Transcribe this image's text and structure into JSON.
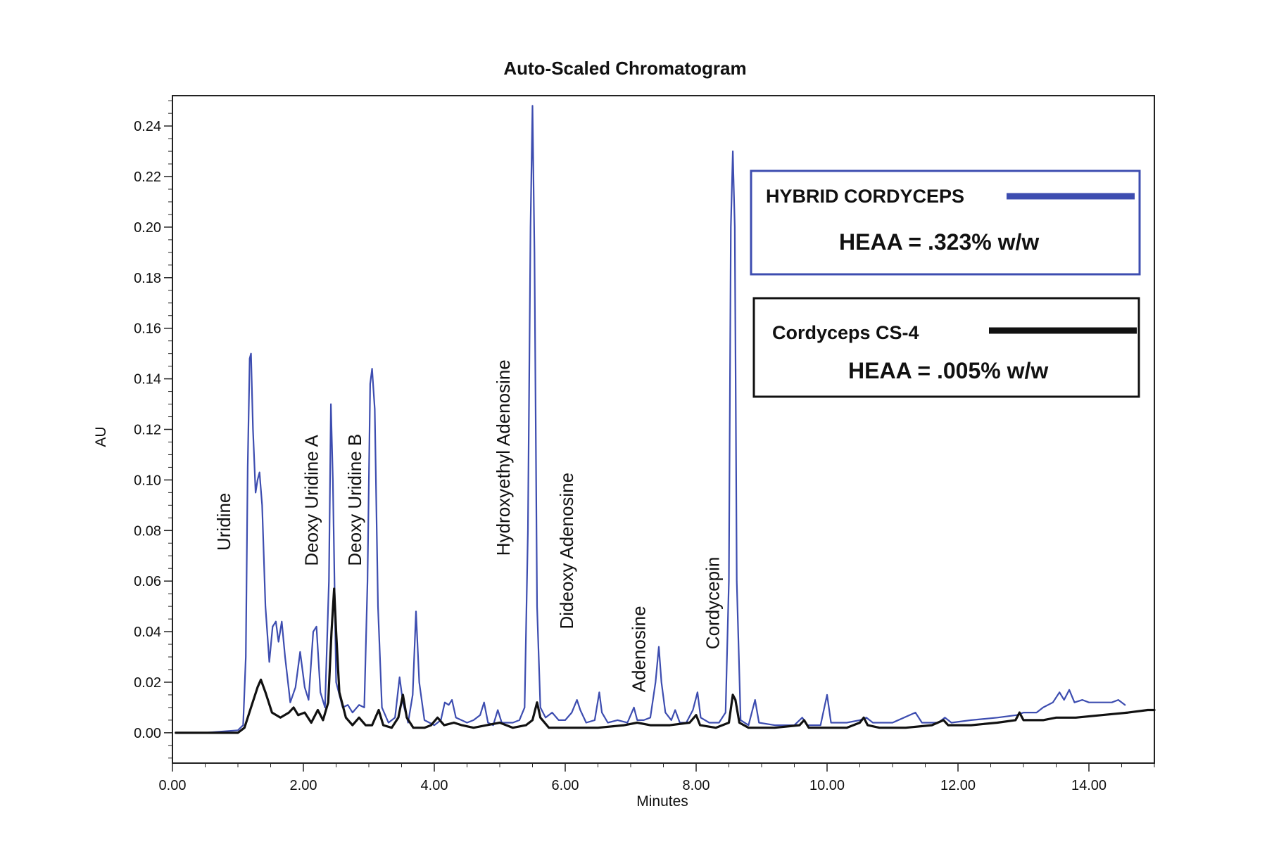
{
  "chart_data": {
    "type": "line",
    "title": "Auto-Scaled Chromatogram",
    "xlabel": "Minutes",
    "ylabel": "AU",
    "xlim": [
      0,
      15.0
    ],
    "ylim": [
      -0.012,
      0.252
    ],
    "x_ticks": [
      "0.00",
      "2.00",
      "4.00",
      "6.00",
      "8.00",
      "10.00",
      "12.00",
      "14.00"
    ],
    "y_ticks": [
      "0.00",
      "0.02",
      "0.04",
      "0.06",
      "0.08",
      "0.10",
      "0.12",
      "0.14",
      "0.16",
      "0.18",
      "0.20",
      "0.22",
      "0.24"
    ],
    "grid": false,
    "legend_position": "top-right",
    "peak_labels": [
      {
        "text": "Uridine",
        "x": 0.88,
        "y": 0.072
      },
      {
        "text": "Deoxy Uridine A",
        "x": 2.22,
        "y": 0.066
      },
      {
        "text": "Deoxy Uridine B",
        "x": 2.88,
        "y": 0.066
      },
      {
        "text": "Hydroxyethyl Adenosine",
        "x": 5.15,
        "y": 0.07
      },
      {
        "text": "Dideoxy Adenosine",
        "x": 6.12,
        "y": 0.041
      },
      {
        "text": "Adenosine",
        "x": 7.22,
        "y": 0.016
      },
      {
        "text": "Cordycepin",
        "x": 8.35,
        "y": 0.033
      }
    ],
    "series": [
      {
        "name": "HYBRID CORDYCEPS",
        "note": "HEAA = .323% w/w",
        "color": "#3d4db0",
        "points": [
          [
            0.05,
            0.0
          ],
          [
            0.5,
            0.0
          ],
          [
            1.0,
            0.001
          ],
          [
            1.08,
            0.003
          ],
          [
            1.12,
            0.03
          ],
          [
            1.15,
            0.105
          ],
          [
            1.18,
            0.148
          ],
          [
            1.2,
            0.15
          ],
          [
            1.23,
            0.12
          ],
          [
            1.27,
            0.095
          ],
          [
            1.3,
            0.1
          ],
          [
            1.33,
            0.103
          ],
          [
            1.37,
            0.09
          ],
          [
            1.42,
            0.05
          ],
          [
            1.48,
            0.028
          ],
          [
            1.53,
            0.042
          ],
          [
            1.58,
            0.044
          ],
          [
            1.62,
            0.036
          ],
          [
            1.67,
            0.044
          ],
          [
            1.72,
            0.03
          ],
          [
            1.8,
            0.012
          ],
          [
            1.88,
            0.018
          ],
          [
            1.95,
            0.032
          ],
          [
            2.02,
            0.018
          ],
          [
            2.08,
            0.013
          ],
          [
            2.15,
            0.04
          ],
          [
            2.2,
            0.042
          ],
          [
            2.26,
            0.016
          ],
          [
            2.33,
            0.01
          ],
          [
            2.39,
            0.06
          ],
          [
            2.42,
            0.13
          ],
          [
            2.45,
            0.1
          ],
          [
            2.5,
            0.02
          ],
          [
            2.6,
            0.01
          ],
          [
            2.68,
            0.011
          ],
          [
            2.75,
            0.008
          ],
          [
            2.85,
            0.011
          ],
          [
            2.93,
            0.01
          ],
          [
            2.98,
            0.06
          ],
          [
            3.02,
            0.138
          ],
          [
            3.05,
            0.144
          ],
          [
            3.09,
            0.128
          ],
          [
            3.14,
            0.05
          ],
          [
            3.2,
            0.01
          ],
          [
            3.3,
            0.004
          ],
          [
            3.4,
            0.006
          ],
          [
            3.47,
            0.022
          ],
          [
            3.52,
            0.012
          ],
          [
            3.6,
            0.004
          ],
          [
            3.67,
            0.015
          ],
          [
            3.72,
            0.048
          ],
          [
            3.77,
            0.02
          ],
          [
            3.85,
            0.005
          ],
          [
            4.0,
            0.003
          ],
          [
            4.1,
            0.005
          ],
          [
            4.16,
            0.012
          ],
          [
            4.22,
            0.011
          ],
          [
            4.27,
            0.013
          ],
          [
            4.33,
            0.006
          ],
          [
            4.5,
            0.004
          ],
          [
            4.6,
            0.005
          ],
          [
            4.7,
            0.007
          ],
          [
            4.76,
            0.012
          ],
          [
            4.82,
            0.004
          ],
          [
            4.9,
            0.003
          ],
          [
            4.97,
            0.009
          ],
          [
            5.03,
            0.004
          ],
          [
            5.2,
            0.004
          ],
          [
            5.3,
            0.005
          ],
          [
            5.38,
            0.01
          ],
          [
            5.43,
            0.08
          ],
          [
            5.47,
            0.2
          ],
          [
            5.5,
            0.248
          ],
          [
            5.53,
            0.19
          ],
          [
            5.57,
            0.05
          ],
          [
            5.62,
            0.01
          ],
          [
            5.7,
            0.006
          ],
          [
            5.8,
            0.008
          ],
          [
            5.9,
            0.005
          ],
          [
            6.0,
            0.005
          ],
          [
            6.1,
            0.008
          ],
          [
            6.18,
            0.013
          ],
          [
            6.23,
            0.009
          ],
          [
            6.32,
            0.004
          ],
          [
            6.45,
            0.005
          ],
          [
            6.52,
            0.016
          ],
          [
            6.56,
            0.008
          ],
          [
            6.65,
            0.004
          ],
          [
            6.8,
            0.005
          ],
          [
            6.95,
            0.004
          ],
          [
            7.05,
            0.01
          ],
          [
            7.1,
            0.005
          ],
          [
            7.2,
            0.005
          ],
          [
            7.3,
            0.006
          ],
          [
            7.38,
            0.02
          ],
          [
            7.43,
            0.034
          ],
          [
            7.47,
            0.02
          ],
          [
            7.53,
            0.008
          ],
          [
            7.62,
            0.005
          ],
          [
            7.68,
            0.009
          ],
          [
            7.75,
            0.004
          ],
          [
            7.85,
            0.004
          ],
          [
            7.95,
            0.009
          ],
          [
            8.02,
            0.016
          ],
          [
            8.07,
            0.006
          ],
          [
            8.2,
            0.004
          ],
          [
            8.35,
            0.004
          ],
          [
            8.45,
            0.008
          ],
          [
            8.5,
            0.06
          ],
          [
            8.53,
            0.2
          ],
          [
            8.56,
            0.23
          ],
          [
            8.59,
            0.2
          ],
          [
            8.62,
            0.06
          ],
          [
            8.68,
            0.005
          ],
          [
            8.8,
            0.003
          ],
          [
            8.9,
            0.013
          ],
          [
            8.96,
            0.004
          ],
          [
            9.2,
            0.003
          ],
          [
            9.5,
            0.003
          ],
          [
            9.62,
            0.006
          ],
          [
            9.7,
            0.003
          ],
          [
            9.9,
            0.003
          ],
          [
            10.0,
            0.015
          ],
          [
            10.06,
            0.004
          ],
          [
            10.3,
            0.004
          ],
          [
            10.5,
            0.005
          ],
          [
            10.6,
            0.006
          ],
          [
            10.7,
            0.004
          ],
          [
            11.0,
            0.004
          ],
          [
            11.35,
            0.008
          ],
          [
            11.45,
            0.004
          ],
          [
            11.7,
            0.004
          ],
          [
            11.8,
            0.006
          ],
          [
            11.9,
            0.004
          ],
          [
            12.2,
            0.005
          ],
          [
            12.6,
            0.006
          ],
          [
            12.9,
            0.007
          ],
          [
            13.0,
            0.008
          ],
          [
            13.2,
            0.008
          ],
          [
            13.3,
            0.01
          ],
          [
            13.45,
            0.012
          ],
          [
            13.55,
            0.016
          ],
          [
            13.62,
            0.013
          ],
          [
            13.7,
            0.017
          ],
          [
            13.78,
            0.012
          ],
          [
            13.9,
            0.013
          ],
          [
            14.0,
            0.012
          ],
          [
            14.2,
            0.012
          ],
          [
            14.35,
            0.012
          ],
          [
            14.45,
            0.013
          ],
          [
            14.55,
            0.011
          ]
        ]
      },
      {
        "name": "Cordyceps CS-4",
        "note": "HEAA = .005% w/w",
        "color": "#111111",
        "points": [
          [
            0.05,
            0.0
          ],
          [
            0.5,
            0.0
          ],
          [
            1.0,
            0.0
          ],
          [
            1.1,
            0.002
          ],
          [
            1.2,
            0.01
          ],
          [
            1.3,
            0.018
          ],
          [
            1.35,
            0.021
          ],
          [
            1.42,
            0.016
          ],
          [
            1.52,
            0.008
          ],
          [
            1.65,
            0.006
          ],
          [
            1.78,
            0.008
          ],
          [
            1.85,
            0.01
          ],
          [
            1.92,
            0.007
          ],
          [
            2.02,
            0.008
          ],
          [
            2.12,
            0.004
          ],
          [
            2.22,
            0.009
          ],
          [
            2.3,
            0.005
          ],
          [
            2.38,
            0.012
          ],
          [
            2.43,
            0.04
          ],
          [
            2.47,
            0.057
          ],
          [
            2.5,
            0.04
          ],
          [
            2.55,
            0.016
          ],
          [
            2.65,
            0.006
          ],
          [
            2.75,
            0.003
          ],
          [
            2.85,
            0.006
          ],
          [
            2.95,
            0.003
          ],
          [
            3.05,
            0.003
          ],
          [
            3.15,
            0.009
          ],
          [
            3.22,
            0.003
          ],
          [
            3.35,
            0.002
          ],
          [
            3.45,
            0.006
          ],
          [
            3.52,
            0.015
          ],
          [
            3.58,
            0.006
          ],
          [
            3.68,
            0.002
          ],
          [
            3.85,
            0.002
          ],
          [
            3.95,
            0.003
          ],
          [
            4.05,
            0.006
          ],
          [
            4.15,
            0.003
          ],
          [
            4.3,
            0.004
          ],
          [
            4.42,
            0.003
          ],
          [
            4.6,
            0.002
          ],
          [
            4.8,
            0.003
          ],
          [
            5.0,
            0.004
          ],
          [
            5.2,
            0.002
          ],
          [
            5.4,
            0.003
          ],
          [
            5.5,
            0.005
          ],
          [
            5.57,
            0.012
          ],
          [
            5.62,
            0.006
          ],
          [
            5.75,
            0.002
          ],
          [
            6.0,
            0.002
          ],
          [
            6.5,
            0.002
          ],
          [
            6.9,
            0.003
          ],
          [
            7.1,
            0.004
          ],
          [
            7.3,
            0.003
          ],
          [
            7.6,
            0.003
          ],
          [
            7.9,
            0.004
          ],
          [
            8.0,
            0.007
          ],
          [
            8.06,
            0.003
          ],
          [
            8.3,
            0.002
          ],
          [
            8.5,
            0.004
          ],
          [
            8.56,
            0.015
          ],
          [
            8.6,
            0.013
          ],
          [
            8.66,
            0.004
          ],
          [
            8.8,
            0.002
          ],
          [
            9.2,
            0.002
          ],
          [
            9.58,
            0.003
          ],
          [
            9.65,
            0.005
          ],
          [
            9.72,
            0.002
          ],
          [
            10.0,
            0.002
          ],
          [
            10.3,
            0.002
          ],
          [
            10.5,
            0.004
          ],
          [
            10.56,
            0.006
          ],
          [
            10.62,
            0.003
          ],
          [
            10.8,
            0.002
          ],
          [
            11.2,
            0.002
          ],
          [
            11.6,
            0.003
          ],
          [
            11.78,
            0.005
          ],
          [
            11.85,
            0.003
          ],
          [
            12.2,
            0.003
          ],
          [
            12.6,
            0.004
          ],
          [
            12.88,
            0.005
          ],
          [
            12.94,
            0.008
          ],
          [
            13.0,
            0.005
          ],
          [
            13.3,
            0.005
          ],
          [
            13.5,
            0.006
          ],
          [
            13.8,
            0.006
          ],
          [
            14.2,
            0.007
          ],
          [
            14.6,
            0.008
          ],
          [
            14.9,
            0.009
          ],
          [
            15.0,
            0.009
          ]
        ]
      }
    ]
  }
}
